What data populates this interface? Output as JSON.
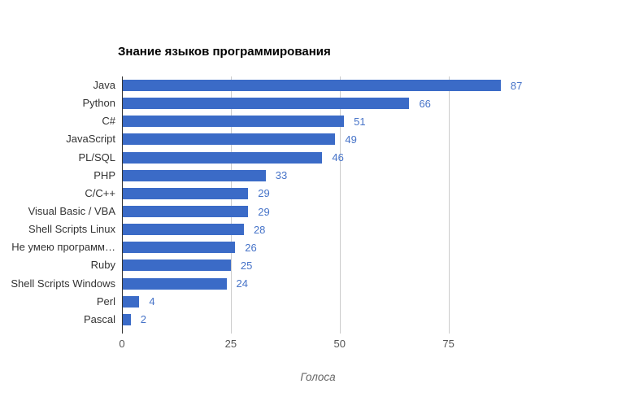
{
  "chart_data": {
    "type": "bar",
    "orientation": "horizontal",
    "title": "Знание языков программирования",
    "categories": [
      "Java",
      "Python",
      "C#",
      "JavaScript",
      "PL/SQL",
      "PHP",
      "C/C++",
      "Visual Basic / VBA",
      "Shell Scripts Linux",
      "Не умею программ…",
      "Ruby",
      "Shell Scripts Windows",
      "Perl",
      "Pascal"
    ],
    "values": [
      87,
      66,
      51,
      49,
      46,
      33,
      29,
      29,
      28,
      26,
      25,
      24,
      4,
      2
    ],
    "xlabel": "Голоса",
    "ylabel": "",
    "xlim": [
      0,
      90
    ],
    "xticks": [
      0,
      25,
      50,
      75
    ],
    "grid": true,
    "legend": "none",
    "annotations_shown": true,
    "colors": {
      "bar": "#3b6bc7",
      "annotation": "#4673c8",
      "gridline": "#cccccc",
      "axis_line": "#333333",
      "tick_label": "#555555",
      "category_label": "#333333",
      "axis_title": "#666666",
      "title": "#000000",
      "background": "#ffffff"
    }
  }
}
